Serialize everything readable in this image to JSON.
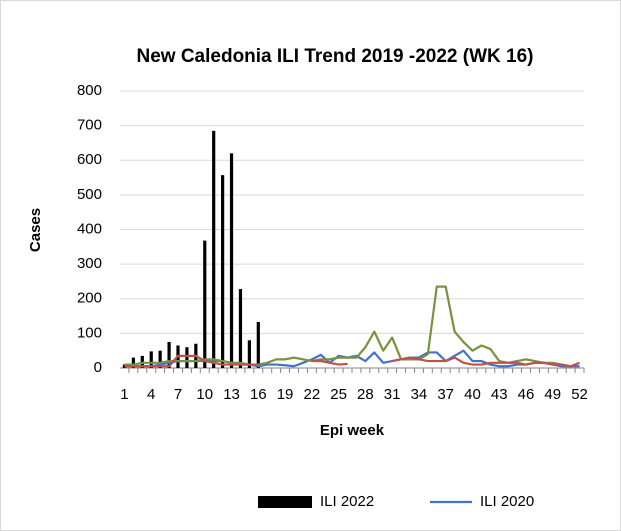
{
  "chart_data": {
    "type": "bar",
    "title": "New Caledonia ILI Trend 2019 -2022 (WK 16)",
    "y_label": "Cases",
    "x_label": "Epi week",
    "categories": [
      1,
      null,
      null,
      4,
      null,
      null,
      7,
      null,
      null,
      10,
      null,
      null,
      13,
      null,
      null,
      16,
      null,
      null,
      19,
      null,
      null,
      22,
      null,
      null,
      25,
      null,
      null,
      28,
      null,
      null,
      31,
      null,
      null,
      34,
      null,
      null,
      37,
      null,
      null,
      40,
      null,
      null,
      43,
      null,
      null,
      46,
      null,
      null,
      49,
      null,
      null,
      52
    ],
    "ylim": [
      0,
      800
    ],
    "yticks": [
      0,
      100,
      200,
      300,
      400,
      500,
      600,
      700,
      800
    ],
    "grid": true,
    "legend": "bottom",
    "series": [
      {
        "name": "ILI 2022",
        "type": "bar",
        "color": "#000000",
        "values": [
          10,
          30,
          35,
          48,
          50,
          75,
          65,
          60,
          70,
          368,
          685,
          557,
          620,
          228,
          80,
          133,
          null,
          null,
          null,
          null,
          null,
          null,
          null,
          null,
          null,
          null,
          null,
          null,
          null,
          null,
          null,
          null,
          null,
          null,
          null,
          null,
          null,
          null,
          null,
          null,
          null,
          null,
          null,
          null,
          null,
          null,
          null,
          null,
          null,
          null,
          null,
          null
        ]
      },
      {
        "name": "ILI 2020",
        "type": "line",
        "color": "#4472c4",
        "values": [
          5,
          5,
          5,
          5,
          10,
          15,
          20,
          20,
          20,
          20,
          20,
          20,
          15,
          10,
          10,
          5,
          10,
          10,
          8,
          5,
          15,
          25,
          38,
          15,
          35,
          30,
          35,
          20,
          45,
          15,
          20,
          25,
          30,
          30,
          45,
          45,
          20,
          35,
          50,
          20,
          20,
          10,
          5,
          5,
          10,
          10,
          15,
          15,
          10,
          5,
          5,
          5
        ]
      },
      {
        "type": "line",
        "color": "#77933c",
        "values": [
          10,
          10,
          15,
          15,
          15,
          20,
          20,
          20,
          20,
          25,
          25,
          20,
          15,
          15,
          10,
          10,
          15,
          25,
          25,
          30,
          25,
          20,
          25,
          25,
          30,
          30,
          30,
          60,
          105,
          50,
          88,
          25,
          25,
          25,
          40,
          235,
          235,
          105,
          75,
          50,
          65,
          55,
          20,
          15,
          20,
          25,
          20,
          15,
          15,
          10,
          5,
          null
        ]
      },
      {
        "type": "line",
        "color": "#c0504d",
        "values": [
          5,
          5,
          5,
          5,
          5,
          5,
          35,
          35,
          35,
          20,
          15,
          10,
          10,
          10,
          10,
          10,
          null,
          null,
          null,
          null,
          null,
          20,
          20,
          15,
          10,
          12,
          null,
          null,
          null,
          null,
          20,
          25,
          30,
          25,
          20,
          20,
          20,
          30,
          15,
          10,
          10,
          15,
          15,
          15,
          15,
          10,
          15,
          15,
          10,
          10,
          5,
          15
        ]
      }
    ]
  }
}
